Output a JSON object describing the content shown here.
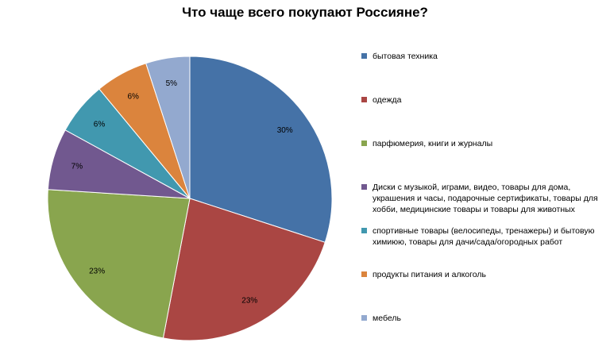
{
  "chart_data": {
    "type": "pie",
    "title": "Что чаще всего покупают Россияне?",
    "legend_position": "right",
    "series": [
      {
        "name": "бытовая техника",
        "value": 30,
        "label": "30%",
        "color": "#4572A7"
      },
      {
        "name": "одежда",
        "value": 23,
        "label": "23%",
        "color": "#AA4643"
      },
      {
        "name": "парфюмерия, книги и журналы",
        "value": 23,
        "label": "23%",
        "color": "#89A54E"
      },
      {
        "name": "Диски с музыкой, играми, видео, товары для дома, украшения и часы, подарочные сертификаты, товары для хобби, медицинские товары и товары для животных",
        "value": 7,
        "label": "7%",
        "color": "#71588F"
      },
      {
        "name": "спортивные товары (велосипеды, тренажеры) и бытовую химиюю, товары для дачи/сада/огородных работ",
        "value": 6,
        "label": "6%",
        "color": "#4198AF"
      },
      {
        "name": "продукты питания и алкоголь",
        "value": 6,
        "label": "6%",
        "color": "#DB843D"
      },
      {
        "name": "мебель",
        "value": 5,
        "label": "5%",
        "color": "#93A9CF"
      }
    ]
  }
}
